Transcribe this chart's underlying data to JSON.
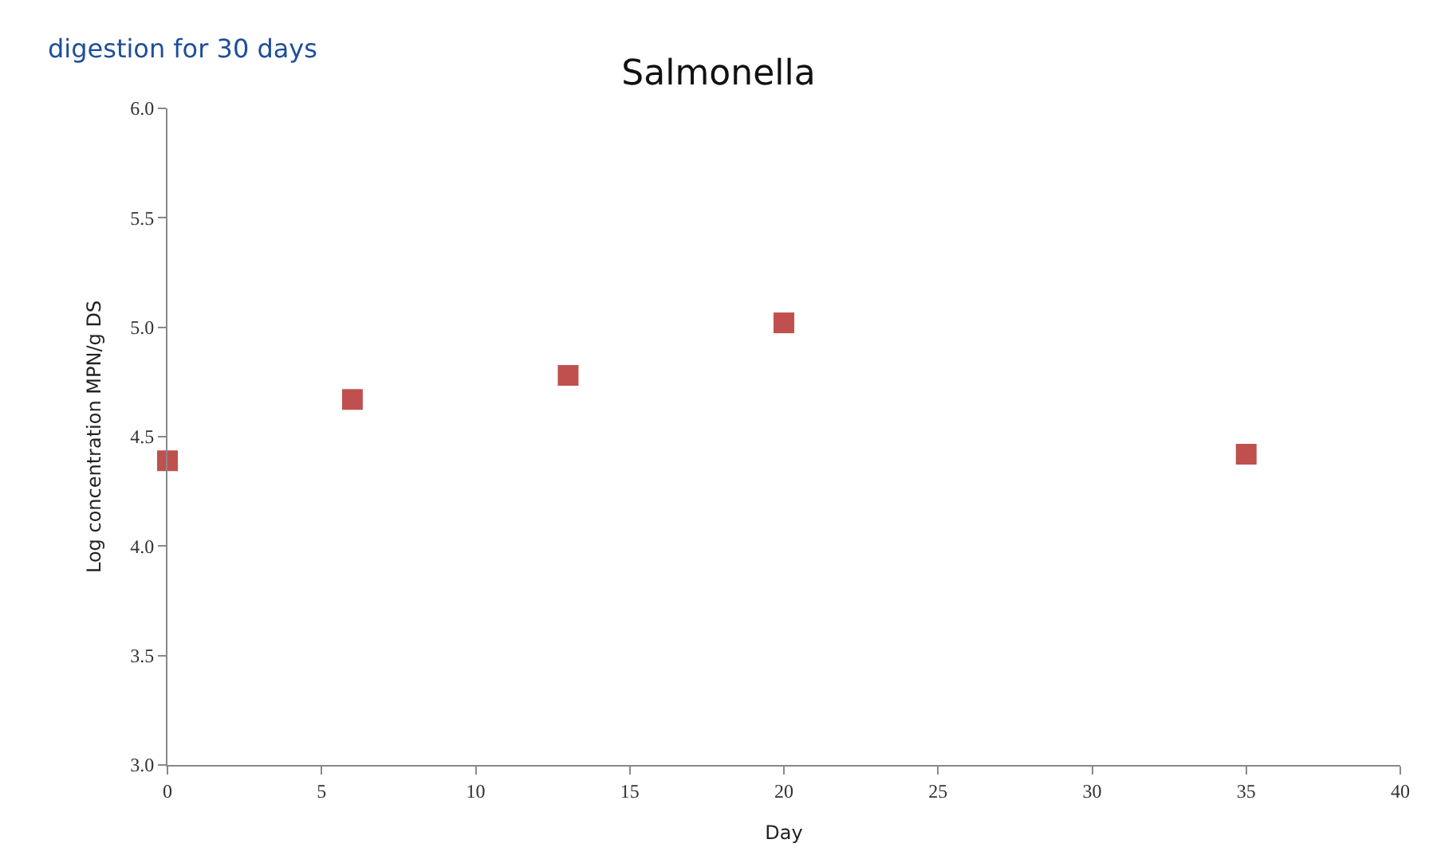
{
  "chart_data": {
    "type": "scatter",
    "title": "Salmonella",
    "xlabel": "Day",
    "ylabel": "Log concentration MPN/g DS",
    "annotations": [
      "digestion for 30 days"
    ],
    "x": [
      0,
      6,
      13,
      20,
      35
    ],
    "series": [
      {
        "color": "#c0504d",
        "values": [
          4.39,
          4.67,
          4.78,
          5.02,
          4.42
        ]
      }
    ],
    "xlim": [
      0,
      40
    ],
    "xticks": [
      0,
      5,
      10,
      15,
      20,
      25,
      30,
      35,
      40
    ],
    "ylim": [
      3.0,
      6.0
    ],
    "yticks": [
      {
        "value": 3.0,
        "label": "3.0"
      },
      3.5,
      {
        "value": 4.0,
        "label": "4.0"
      },
      4.5,
      {
        "value": 5.0,
        "label": "5.0"
      },
      5.5,
      {
        "value": 6.0,
        "label": "6.0"
      }
    ],
    "marker": "square"
  }
}
